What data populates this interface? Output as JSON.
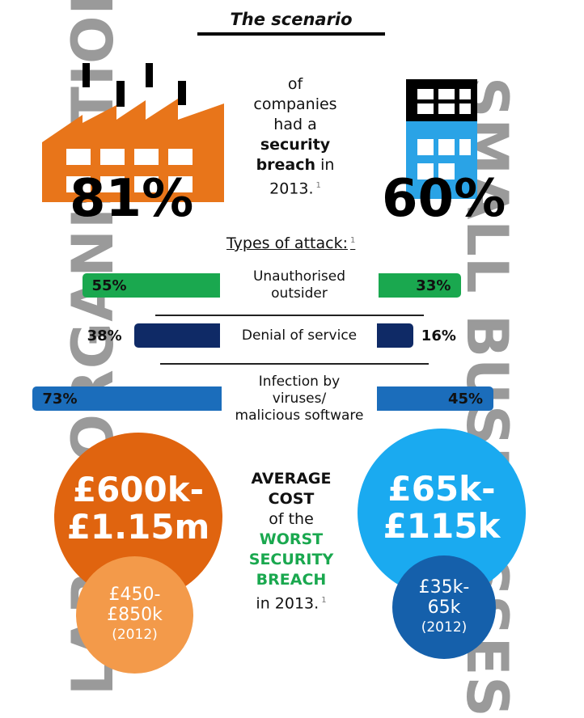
{
  "title": "The scenario",
  "side_left": "LARGE ORGANISATIONS",
  "side_right": "SMALL BUSINESSES",
  "colors": {
    "factory": "#e8751a",
    "office_top": "#000000",
    "office_bottom": "#2aa3e6",
    "bar_green": "#1aa84f",
    "bar_navy": "#0f2a66",
    "bar_blue": "#1b6dbb",
    "circle_orange_dark": "#e0640f",
    "circle_orange_light": "#f39a4a",
    "circle_blue_light": "#1aaaf0",
    "circle_blue_dark": "#1560ab",
    "highlight_green": "#1aa84f",
    "side_text": "#9a9a9a"
  },
  "icons": {
    "left": "factory-icon",
    "right": "office-building-icon"
  },
  "breach": {
    "large_pct": "81%",
    "small_pct": "60%",
    "text_line1": "of",
    "text_line2": "companies",
    "text_line3": "had a",
    "text_bold1": "security",
    "text_bold2": "breach",
    "text_in": "in",
    "text_year": "2013.",
    "footnote": "1"
  },
  "attack_heading": "Types of attack:",
  "attack_footnote": "1",
  "chart_data": {
    "type": "bar",
    "title": "Types of attack:",
    "categories": [
      "Unauthorised outsider",
      "Denial of service",
      "Infection by viruses/ malicious software"
    ],
    "series": [
      {
        "name": "",
        "values": [
          55,
          38,
          73
        ]
      },
      {
        "name": "",
        "values": [
          33,
          16,
          45
        ]
      }
    ],
    "labels_large": [
      "55%",
      "38%",
      "73%"
    ],
    "labels_small": [
      "33%",
      "16%",
      "45%"
    ],
    "category_lines": [
      [
        "Unauthorised",
        "outsider"
      ],
      [
        "Denial of service"
      ],
      [
        "Infection by",
        "viruses/",
        "malicious software"
      ]
    ],
    "bar_colors": [
      "#1aa84f",
      "#0f2a66",
      "#1b6dbb"
    ],
    "ylim": [
      0,
      100
    ]
  },
  "cost": {
    "large_2013_line1": "£600k-",
    "large_2013_line2": "£1.15m",
    "large_2012_line1": "£450-",
    "large_2012_line2": "£850k",
    "large_2012_year": "(2012)",
    "small_2013_line1": "£65k-",
    "small_2013_line2": "£115k",
    "small_2012_line1": "£35k-",
    "small_2012_line2": "65k",
    "small_2012_year": "(2012)",
    "center_line1": "AVERAGE",
    "center_line2": "COST",
    "center_line3": "of the",
    "center_line4": "WORST",
    "center_line5": "SECURITY",
    "center_line6": "BREACH",
    "center_line7": "in 2013.",
    "footnote": "1"
  }
}
